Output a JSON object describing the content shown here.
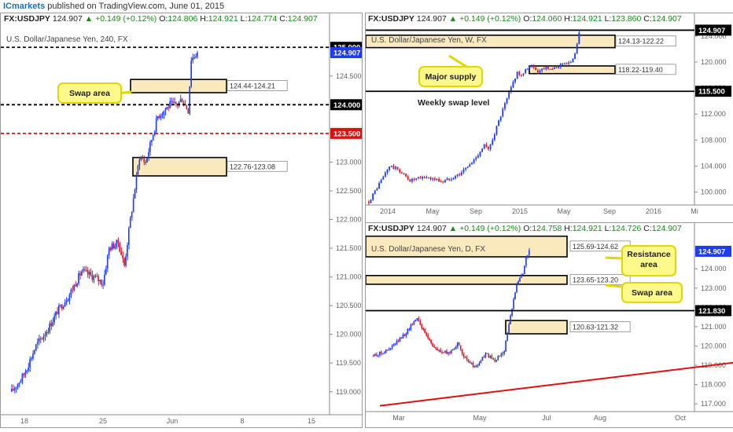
{
  "header": {
    "brand": "ICmarkets",
    "published": "published on TradingView.com, June 01, 2015"
  },
  "colors": {
    "bull": "#1f3cf5",
    "bear": "#d21a2a",
    "zone_fill": "#fbe9be",
    "callout": "#fdf98a",
    "callout_border": "#e2d600",
    "red_level": "#e01010",
    "price_tag": "#1f3cf5"
  },
  "charts": [
    {
      "id": "h4",
      "info": {
        "symbol": "FX:USDJPY",
        "price": "124.907",
        "arrow": "▲",
        "change": "+0.149 (+0.12%)",
        "o_label": "O:",
        "o": "124.806",
        "h_label": "H:",
        "h": "124.921",
        "l_label": "L:",
        "l": "124.774",
        "c_label": "C:",
        "c": "124.907"
      },
      "title": "U.S. Dollar/Japanese Yen, 240, FX"
    },
    {
      "id": "weekly",
      "info": {
        "symbol": "FX:USDJPY",
        "price": "124.907",
        "arrow": "▲",
        "change": "+0.149 (+0.12%)",
        "o_label": "O:",
        "o": "124.060",
        "h_label": "H:",
        "h": "124.921",
        "l_label": "L:",
        "l": "123.860",
        "c_label": "C:",
        "c": "124.907"
      },
      "title": "U.S. Dollar/Japanese Yen, W, FX"
    },
    {
      "id": "daily",
      "info": {
        "symbol": "FX:USDJPY",
        "price": "124.907",
        "arrow": "▲",
        "change": "+0.149 (+0.12%)",
        "o_label": "O:",
        "o": "124.758",
        "h_label": "H:",
        "h": "124.921",
        "l_label": "L:",
        "l": "124.726",
        "c_label": "C:",
        "c": "124.907"
      },
      "title": "U.S. Dollar/Japanese Yen, D, FX"
    }
  ],
  "chart_data": [
    {
      "type": "candlestick",
      "panel": "h4",
      "ylim": [
        118.6,
        125.4
      ],
      "y_ticks": [
        "125.000",
        "124.500",
        "124.000",
        "123.500",
        "123.000",
        "122.500",
        "122.000",
        "121.500",
        "121.000",
        "120.500",
        "120.000",
        "119.500",
        "119.000"
      ],
      "x_ticks": [
        "18",
        "25",
        "Jun",
        "8",
        "15"
      ],
      "price_labels": [
        {
          "text": "125.000",
          "value": 125.0,
          "style": "black"
        },
        {
          "text": "124.907",
          "value": 124.907,
          "style": "blue"
        },
        {
          "text": "124.000",
          "value": 124.0,
          "style": "black"
        },
        {
          "text": "123.500",
          "value": 123.5,
          "style": "red"
        }
      ],
      "levels": [
        {
          "value": 125.0,
          "color": "#000000",
          "dash": true
        },
        {
          "value": 124.0,
          "color": "#000000",
          "dash": true
        },
        {
          "value": 123.5,
          "color": "#e01010",
          "dash": true
        }
      ],
      "zones": [
        {
          "label": "124.44-124.21",
          "top": 124.44,
          "bottom": 124.21
        },
        {
          "label": "122.76-123.08",
          "top": 123.08,
          "bottom": 122.76
        }
      ],
      "callouts": [
        {
          "text": "Swap area"
        }
      ],
      "series": {
        "anchors": [
          [
            0,
            119.0
          ],
          [
            8,
            119.3
          ],
          [
            16,
            119.8
          ],
          [
            24,
            120.1
          ],
          [
            30,
            120.4
          ],
          [
            38,
            120.7
          ],
          [
            46,
            121.1
          ],
          [
            54,
            121.0
          ],
          [
            60,
            120.9
          ],
          [
            64,
            121.5
          ],
          [
            70,
            121.6
          ],
          [
            74,
            121.2
          ],
          [
            78,
            122.0
          ],
          [
            84,
            123.1
          ],
          [
            88,
            123.0
          ],
          [
            92,
            123.4
          ],
          [
            96,
            123.8
          ],
          [
            100,
            123.9
          ],
          [
            104,
            124.0
          ],
          [
            108,
            124.0
          ],
          [
            112,
            124.1
          ],
          [
            116,
            123.9
          ],
          [
            118,
            124.8
          ],
          [
            122,
            124.9
          ]
        ],
        "count": 123
      }
    },
    {
      "type": "candlestick",
      "panel": "weekly",
      "ylim": [
        98,
        125.8
      ],
      "y_ticks": [
        "124.000",
        "120.000",
        "116.000",
        "112.000",
        "108.000",
        "104.000",
        "100.000"
      ],
      "x_ticks": [
        "2014",
        "May",
        "Sep",
        "2015",
        "May",
        "Sep",
        "2016",
        "Mi"
      ],
      "price_labels": [
        {
          "text": "124.907",
          "value": 124.907,
          "style": "black"
        },
        {
          "text": "115.500",
          "value": 115.5,
          "style": "black"
        }
      ],
      "levels": [
        {
          "value": 124.9,
          "color": "#000000",
          "dash": false
        },
        {
          "value": 115.5,
          "color": "#000000",
          "dash": false
        }
      ],
      "zones": [
        {
          "label": "124.13-122.22",
          "top": 124.13,
          "bottom": 122.22
        },
        {
          "label": "118.22-119.40",
          "top": 119.4,
          "bottom": 118.22
        }
      ],
      "callouts": [
        {
          "text": "Major supply"
        }
      ],
      "annotations": [
        {
          "text": "Weekly swap level"
        }
      ],
      "series": {
        "anchors": [
          [
            0,
            98.5
          ],
          [
            6,
            101.8
          ],
          [
            10,
            104.0
          ],
          [
            14,
            103.5
          ],
          [
            20,
            101.8
          ],
          [
            28,
            102.3
          ],
          [
            36,
            101.6
          ],
          [
            44,
            102.8
          ],
          [
            50,
            104.5
          ],
          [
            56,
            107.2
          ],
          [
            58,
            106.4
          ],
          [
            62,
            110.0
          ],
          [
            68,
            115.2
          ],
          [
            72,
            118.5
          ],
          [
            74,
            117.8
          ],
          [
            78,
            119.5
          ],
          [
            82,
            118.6
          ],
          [
            86,
            119.3
          ],
          [
            90,
            118.9
          ],
          [
            94,
            119.9
          ],
          [
            98,
            119.8
          ],
          [
            100,
            121.5
          ],
          [
            102,
            124.5
          ]
        ],
        "count": 103
      }
    },
    {
      "type": "candlestick",
      "panel": "daily",
      "ylim": [
        116.6,
        125.8
      ],
      "y_ticks": [
        "125.000",
        "124.000",
        "123.000",
        "122.000",
        "121.000",
        "120.000",
        "119.000",
        "118.000",
        "117.000"
      ],
      "x_ticks": [
        "Mar",
        "May",
        "Jul",
        "Aug",
        "Oct"
      ],
      "price_labels": [
        {
          "text": "124.907",
          "value": 124.907,
          "style": "blue"
        },
        {
          "text": "121.830",
          "value": 121.83,
          "style": "black"
        }
      ],
      "levels": [
        {
          "value": 121.83,
          "color": "#000000",
          "dash": false
        }
      ],
      "zones": [
        {
          "label": "125.69-124.62",
          "top": 125.69,
          "bottom": 124.62
        },
        {
          "label": "123.65-123.20",
          "top": 123.65,
          "bottom": 123.2
        },
        {
          "label": "120.63-121.32",
          "top": 121.32,
          "bottom": 120.63
        }
      ],
      "callouts": [
        {
          "text": "Resistance\narea"
        },
        {
          "text": "Swap area"
        }
      ],
      "trendline": {
        "from": [
          0,
          116.9
        ],
        "to": [
          230,
          121.3
        ]
      },
      "series": {
        "anchors": [
          [
            0,
            119.5
          ],
          [
            10,
            119.8
          ],
          [
            20,
            120.6
          ],
          [
            28,
            121.5
          ],
          [
            32,
            120.8
          ],
          [
            40,
            119.8
          ],
          [
            48,
            119.6
          ],
          [
            54,
            120.1
          ],
          [
            60,
            119.2
          ],
          [
            66,
            118.9
          ],
          [
            72,
            119.6
          ],
          [
            78,
            119.2
          ],
          [
            84,
            119.8
          ],
          [
            88,
            121.5
          ],
          [
            92,
            123.3
          ],
          [
            96,
            123.8
          ],
          [
            98,
            124.6
          ],
          [
            100,
            124.9
          ]
        ],
        "count": 101
      }
    }
  ]
}
